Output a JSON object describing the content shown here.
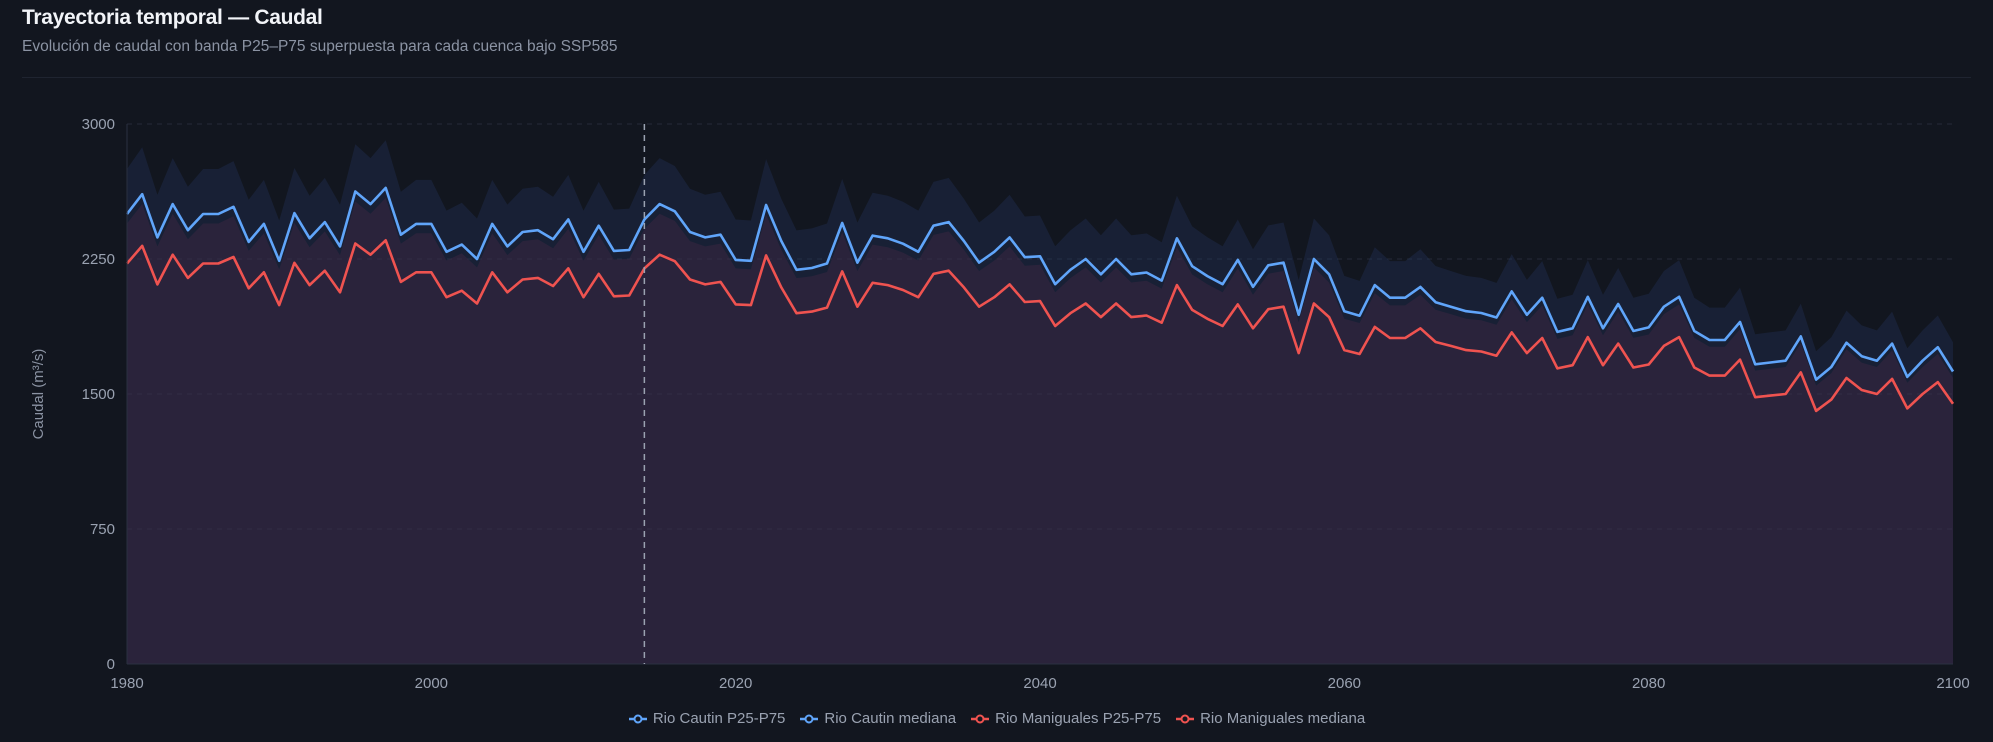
{
  "header": {
    "title": "Trayectoria temporal — Caudal",
    "subtitle": "Evolución de caudal con banda P25–P75 superpuesta para cada cuenca bajo SSP585"
  },
  "chart_data": {
    "type": "line",
    "title": "Trayectoria temporal — Caudal",
    "ylabel": "Caudal (m³/s)",
    "xlabel": "",
    "xlim": [
      1980,
      2100
    ],
    "ylim": [
      0,
      3000
    ],
    "yticks": [
      "0",
      "750",
      "1500",
      "2250",
      "3000"
    ],
    "xticks": [
      "1980",
      "2000",
      "2020",
      "2040",
      "2060",
      "2080",
      "2100"
    ],
    "grid": true,
    "reference_year": 2014,
    "legend_position": "bottom",
    "band_note": "P25–P75 band approximated as median ×0.9 / ×1.1",
    "band_p25_factor": 0.9,
    "band_p75_factor": 1.1,
    "colors": {
      "cautin": "#60a5fa",
      "maniguales": "#ef5350"
    },
    "legend": [
      "Rio Cautin P25-P75",
      "Rio Cautin mediana",
      "Rio Maniguales P25-P75",
      "Rio Maniguales mediana"
    ],
    "series": [
      {
        "name": "Rio Cautin mediana",
        "color": "#60a5fa",
        "values": [
          2500,
          2610,
          2370,
          2555,
          2410,
          2500,
          2500,
          2540,
          2345,
          2445,
          2240,
          2505,
          2365,
          2455,
          2320,
          2625,
          2555,
          2645,
          2385,
          2445,
          2445,
          2290,
          2330,
          2250,
          2445,
          2320,
          2400,
          2410,
          2360,
          2470,
          2290,
          2435,
          2295,
          2300,
          2470,
          2555,
          2515,
          2400,
          2370,
          2385,
          2245,
          2240,
          2550,
          2350,
          2190,
          2200,
          2225,
          2450,
          2230,
          2380,
          2365,
          2335,
          2290,
          2435,
          2455,
          2350,
          2230,
          2290,
          2370,
          2260,
          2265,
          2110,
          2190,
          2250,
          2165,
          2250,
          2165,
          2175,
          2130,
          2365,
          2210,
          2155,
          2110,
          2245,
          2095,
          2215,
          2230,
          1940,
          2250,
          2165,
          1960,
          1935,
          2105,
          2035,
          2035,
          2095,
          2010,
          1985,
          1960,
          1950,
          1925,
          2070,
          1940,
          2035,
          1845,
          1865,
          2040,
          1865,
          2000,
          1850,
          1870,
          1985,
          2040,
          1850,
          1800,
          1800,
          1900,
          1665,
          1675,
          1685,
          1820,
          1580,
          1650,
          1785,
          1710,
          1685,
          1780,
          1595,
          1685,
          1760,
          1625
        ]
      },
      {
        "name": "Rio Maniguales mediana",
        "color": "#ef5350",
        "values": [
          2225,
          2323,
          2109,
          2274,
          2145,
          2225,
          2225,
          2261,
          2087,
          2176,
          1994,
          2229,
          2105,
          2185,
          2065,
          2336,
          2274,
          2354,
          2123,
          2176,
          2176,
          2038,
          2074,
          2003,
          2176,
          2065,
          2136,
          2145,
          2100,
          2198,
          2038,
          2167,
          2043,
          2047,
          2198,
          2274,
          2238,
          2136,
          2109,
          2123,
          1998,
          1994,
          2270,
          2092,
          1949,
          1958,
          1980,
          2181,
          1985,
          2118,
          2105,
          2078,
          2038,
          2167,
          2185,
          2092,
          1985,
          2038,
          2109,
          2011,
          2016,
          1878,
          1949,
          2003,
          1927,
          2003,
          1927,
          1936,
          1896,
          2105,
          1967,
          1918,
          1878,
          1998,
          1865,
          1971,
          1985,
          1727,
          2003,
          1927,
          1744,
          1722,
          1873,
          1811,
          1811,
          1865,
          1789,
          1767,
          1744,
          1736,
          1713,
          1842,
          1727,
          1811,
          1642,
          1660,
          1816,
          1660,
          1780,
          1647,
          1664,
          1767,
          1816,
          1647,
          1602,
          1602,
          1691,
          1482,
          1491,
          1500,
          1620,
          1406,
          1469,
          1589,
          1522,
          1500,
          1584,
          1420,
          1500,
          1566,
          1446
        ]
      }
    ]
  }
}
